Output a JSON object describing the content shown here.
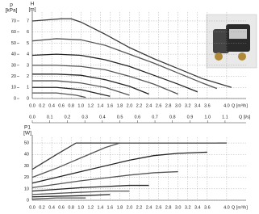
{
  "chart_data": [
    {
      "type": "line",
      "ylabel": "H",
      "yunit": "[m]",
      "y2label": "p",
      "y2unit": "[kPa]",
      "xlabel": "Q [m³/h]",
      "xlim": [
        0,
        4.4
      ],
      "ylim": [
        0,
        7.8
      ],
      "y2lim": [
        0,
        78
      ],
      "grid": true,
      "xticks": [
        {
          "value": 0,
          "label": "0.0"
        },
        {
          "value": 0.2,
          "label": "0.2"
        },
        {
          "value": 0.4,
          "label": "0.4"
        },
        {
          "value": 0.6,
          "label": "0.6"
        },
        {
          "value": 0.8,
          "label": "0.8"
        },
        {
          "value": 1,
          "label": "1.0"
        },
        {
          "value": 1.2,
          "label": "1.2"
        },
        {
          "value": 1.4,
          "label": "1.4"
        },
        {
          "value": 1.6,
          "label": "1.6"
        },
        {
          "value": 1.8,
          "label": "1.8"
        },
        {
          "value": 2,
          "label": "2.0"
        },
        {
          "value": 2.2,
          "label": "2.2"
        },
        {
          "value": 2.4,
          "label": "2.4"
        },
        {
          "value": 2.6,
          "label": "2.6"
        },
        {
          "value": 2.8,
          "label": "2.8"
        },
        {
          "value": 3,
          "label": "3.0"
        },
        {
          "value": 3.2,
          "label": "3.2"
        },
        {
          "value": 3.4,
          "label": "3.4"
        },
        {
          "value": 3.6,
          "label": "3.6"
        },
        {
          "value": 4,
          "label": "4.0"
        }
      ],
      "yticks": [
        0,
        1,
        2,
        3,
        4,
        5,
        6,
        7
      ],
      "y2ticks": [
        0,
        10,
        20,
        30,
        40,
        50,
        60,
        70
      ],
      "series": [
        {
          "color": "#3a3a3a",
          "x": [
            0,
            0.3,
            0.6,
            0.8,
            1.0,
            1.5,
            2.0,
            2.5,
            3.0,
            3.5,
            4.1
          ],
          "values": [
            7.0,
            7.1,
            7.2,
            7.2,
            6.9,
            5.8,
            4.6,
            3.6,
            2.7,
            1.8,
            1.0
          ]
        },
        {
          "color": "#555555",
          "x": [
            0,
            0.5,
            1.0,
            1.5,
            2.0,
            2.5,
            3.0,
            3.5,
            3.8
          ],
          "values": [
            5.2,
            5.4,
            5.3,
            4.8,
            4.0,
            3.2,
            2.3,
            1.4,
            0.9
          ]
        },
        {
          "color": "#222222",
          "x": [
            0,
            0.5,
            1.0,
            1.5,
            2.0,
            2.5,
            3.0,
            3.4
          ],
          "values": [
            3.9,
            4.0,
            3.9,
            3.5,
            2.9,
            2.1,
            1.3,
            0.6
          ]
        },
        {
          "color": "#555555",
          "x": [
            0,
            0.5,
            1.0,
            1.5,
            2.0,
            2.5,
            3.0
          ],
          "values": [
            3.0,
            3.0,
            2.9,
            2.6,
            2.0,
            1.3,
            0.4
          ]
        },
        {
          "color": "#222222",
          "x": [
            0,
            0.5,
            1.0,
            1.5,
            2.0,
            2.4
          ],
          "values": [
            2.2,
            2.2,
            2.1,
            1.7,
            1.1,
            0.4
          ]
        },
        {
          "color": "#555555",
          "x": [
            0,
            0.5,
            1.0,
            1.5,
            2.0
          ],
          "values": [
            1.6,
            1.6,
            1.4,
            1.0,
            0.3
          ]
        },
        {
          "color": "#222222",
          "x": [
            0,
            0.5,
            1.0,
            1.4,
            1.6
          ],
          "values": [
            1.0,
            1.0,
            0.8,
            0.4,
            0.2
          ]
        },
        {
          "color": "#555555",
          "x": [
            0,
            0.5,
            0.9,
            1.1
          ],
          "values": [
            0.5,
            0.5,
            0.3,
            0.1
          ]
        }
      ]
    },
    {
      "type": "line",
      "ylabel": "P1",
      "yunit": "[W]",
      "xlabel": "Q [m³/h]",
      "x2label": "Q [l/s]",
      "xlim": [
        0,
        4.4
      ],
      "ylim": [
        0,
        55
      ],
      "x2lim": [
        0,
        1.22
      ],
      "grid": true,
      "xticks": [
        {
          "value": 0,
          "label": "0.0"
        },
        {
          "value": 0.2,
          "label": "0.2"
        },
        {
          "value": 0.4,
          "label": "0.4"
        },
        {
          "value": 0.6,
          "label": "0.6"
        },
        {
          "value": 0.8,
          "label": "0.8"
        },
        {
          "value": 1,
          "label": "1.0"
        },
        {
          "value": 1.2,
          "label": "1.2"
        },
        {
          "value": 1.4,
          "label": "1.4"
        },
        {
          "value": 1.6,
          "label": "1.6"
        },
        {
          "value": 1.8,
          "label": "1.8"
        },
        {
          "value": 2,
          "label": "2.0"
        },
        {
          "value": 2.2,
          "label": "2.2"
        },
        {
          "value": 2.4,
          "label": "2.4"
        },
        {
          "value": 2.6,
          "label": "2.6"
        },
        {
          "value": 2.8,
          "label": "2.8"
        },
        {
          "value": 3,
          "label": "3.0"
        },
        {
          "value": 3.2,
          "label": "3.2"
        },
        {
          "value": 3.4,
          "label": "3.4"
        },
        {
          "value": 3.6,
          "label": "3.6"
        },
        {
          "value": 4,
          "label": "4.0"
        }
      ],
      "x2ticks": [
        {
          "value": 0,
          "label": "0.0"
        },
        {
          "value": 0.1,
          "label": "0.1"
        },
        {
          "value": 0.2,
          "label": "0.2"
        },
        {
          "value": 0.3,
          "label": "0.3"
        },
        {
          "value": 0.4,
          "label": "0.4"
        },
        {
          "value": 0.5,
          "label": "0.5"
        },
        {
          "value": 0.6,
          "label": "0.6"
        },
        {
          "value": 0.7,
          "label": "0.7"
        },
        {
          "value": 0.8,
          "label": "0.8"
        },
        {
          "value": 0.9,
          "label": "0.9"
        },
        {
          "value": 1,
          "label": "1.0"
        },
        {
          "value": 1.1,
          "label": "1.1"
        }
      ],
      "yticks": [
        0,
        10,
        20,
        30,
        40,
        50
      ],
      "series": [
        {
          "color": "#3a3a3a",
          "x": [
            0,
            0.5,
            0.9,
            4.0
          ],
          "values": [
            27,
            40,
            50,
            50
          ]
        },
        {
          "color": "#555555",
          "x": [
            0,
            0.5,
            1.0,
            1.5,
            1.8,
            3.8
          ],
          "values": [
            20,
            28,
            37,
            46,
            50,
            50
          ]
        },
        {
          "color": "#222222",
          "x": [
            0,
            1.0,
            2.0,
            2.5,
            3.0,
            3.6
          ],
          "values": [
            15,
            25,
            35,
            39,
            41,
            42
          ]
        },
        {
          "color": "#555555",
          "x": [
            0,
            1.0,
            2.0,
            2.5,
            3.0
          ],
          "values": [
            11,
            17,
            22,
            24,
            25
          ]
        },
        {
          "color": "#222222",
          "x": [
            0,
            1.0,
            1.5,
            2.0,
            2.4
          ],
          "values": [
            8,
            11,
            12,
            13,
            13
          ]
        },
        {
          "color": "#555555",
          "x": [
            0,
            1.0,
            1.6,
            2.0
          ],
          "values": [
            5,
            7,
            8,
            8
          ]
        },
        {
          "color": "#222222",
          "x": [
            0,
            1.0,
            1.6
          ],
          "values": [
            3,
            4,
            5
          ]
        },
        {
          "color": "#555555",
          "x": [
            0,
            0.5,
            1.1
          ],
          "values": [
            1,
            2,
            2
          ]
        }
      ]
    }
  ]
}
